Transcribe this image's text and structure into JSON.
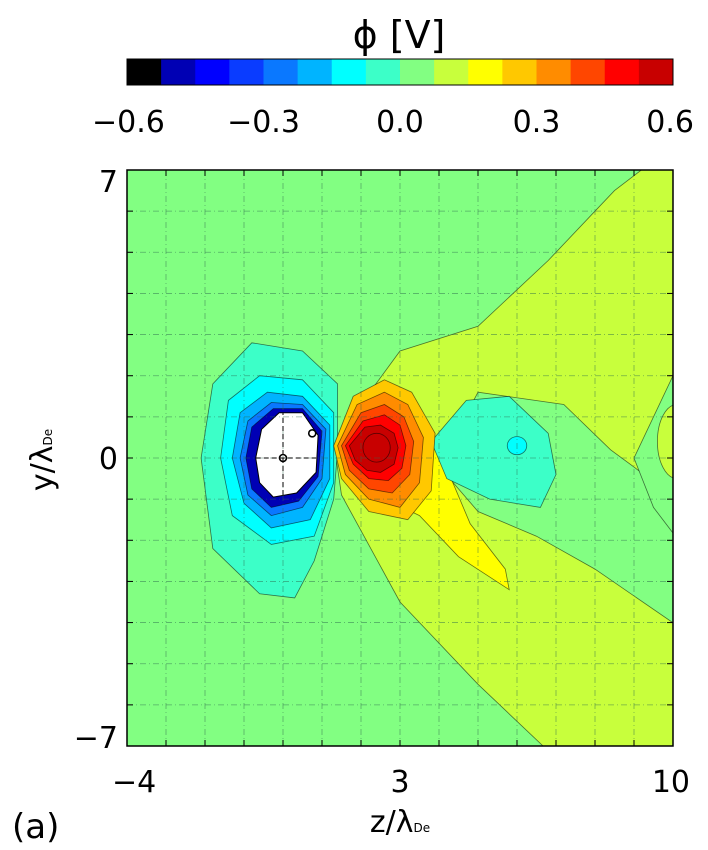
{
  "chart_data": {
    "type": "heatmap",
    "colorbar": {
      "title": "ϕ  [V]",
      "tick_labels": [
        "−0.6",
        "−0.3",
        "0.0",
        "0.3",
        "0.6"
      ],
      "ticks": [
        -0.6,
        -0.3,
        0.0,
        0.3,
        0.6
      ],
      "range": [
        -0.6,
        0.6
      ],
      "colors": [
        "#000000",
        "#0000b4",
        "#0000ff",
        "#0a3cff",
        "#0a78ff",
        "#00b4ff",
        "#00ffff",
        "#3cffc8",
        "#82ff82",
        "#c8ff3c",
        "#ffff00",
        "#ffc800",
        "#ff8c00",
        "#ff4600",
        "#ff0000",
        "#c80000"
      ]
    },
    "xlabel": "z/λ",
    "xlabel_sub": "De",
    "ylabel": "y/λ",
    "ylabel_sub": "De",
    "x_tick_labels": [
      "−4",
      "3",
      "10"
    ],
    "y_tick_labels": [
      "7",
      "0",
      "−7"
    ],
    "xlim": [
      -4,
      10
    ],
    "ylim": [
      -7,
      7
    ],
    "grid": true,
    "panel_label": "(a)",
    "features": [
      {
        "kind": "minimum",
        "z": 0.0,
        "y": 0.0,
        "value": -0.6
      },
      {
        "kind": "minimum",
        "z": 0.75,
        "y": 0.6,
        "value": -0.6
      },
      {
        "kind": "maximum",
        "z": 2.4,
        "y": 0.25,
        "value": 0.55
      },
      {
        "kind": "local_minimum",
        "z": 6.0,
        "y": 0.3,
        "value": -0.15
      },
      {
        "kind": "local_maximum",
        "z": 10.0,
        "y": 0.4,
        "value": 0.1
      }
    ]
  }
}
